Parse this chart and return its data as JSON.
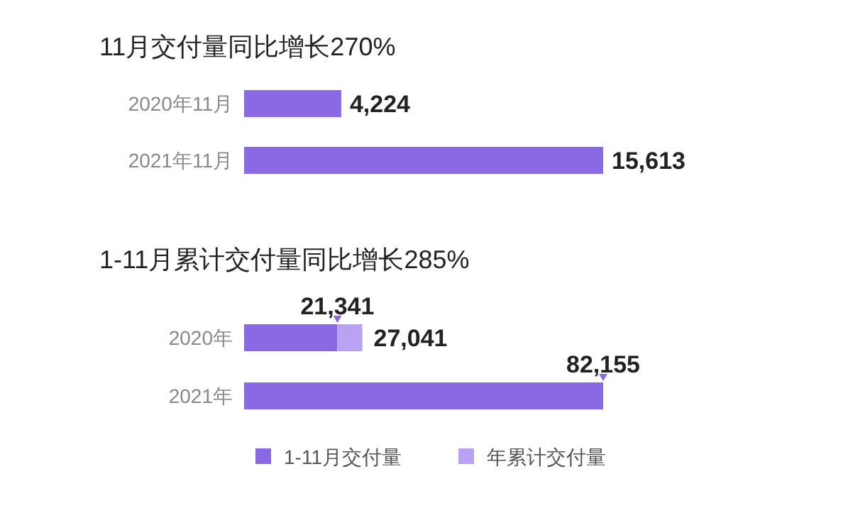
{
  "chart_data": [
    {
      "type": "bar",
      "orientation": "horizontal",
      "title": "11月交付量同比增长270%",
      "categories": [
        "2020年11月",
        "2021年11月"
      ],
      "values": [
        4224,
        15613
      ],
      "color": "#8b68e4",
      "value_labels": [
        "4,224",
        "15,613"
      ]
    },
    {
      "type": "bar",
      "orientation": "horizontal",
      "title": "1-11月累计交付量同比增长285%",
      "categories": [
        "2020年",
        "2021年"
      ],
      "series": [
        {
          "name": "1-11月交付量",
          "color": "#8b68e4",
          "values": [
            21341,
            82155
          ],
          "value_labels": [
            "21,341",
            "82,155"
          ]
        },
        {
          "name": "年累计交付量",
          "color": "#b9a2f2",
          "values": [
            5700,
            null
          ]
        }
      ],
      "stacked": true,
      "totals": [
        "27,041",
        null
      ],
      "legend": "bottom"
    }
  ]
}
